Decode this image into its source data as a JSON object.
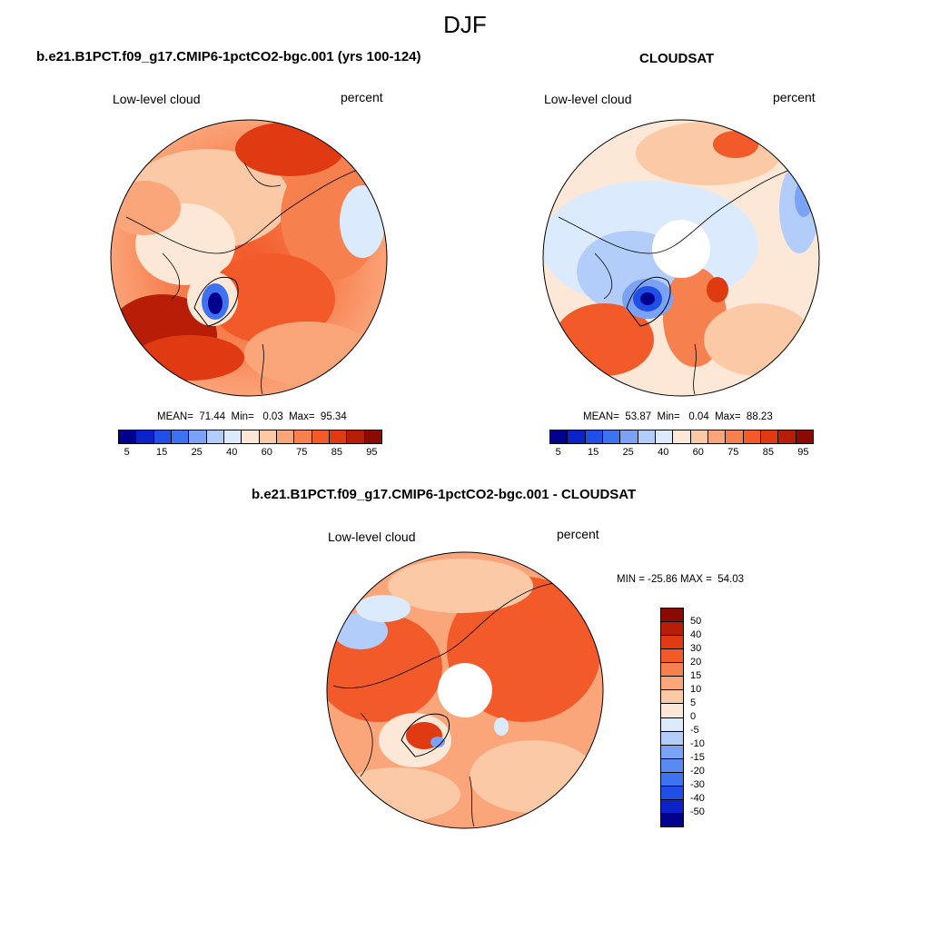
{
  "figure": {
    "title": "DJF"
  },
  "panels": {
    "model": {
      "title": "b.e21.B1PCT.f09_g17.CMIP6-1pctCO2-bgc.001 (yrs 100-124)",
      "variable": "Low-level cloud",
      "units": "percent",
      "stats": "MEAN=  71.44  Min=   0.03  Max=  95.34"
    },
    "obs": {
      "title": "CLOUDSAT",
      "variable": "Low-level cloud",
      "units": "percent",
      "stats": "MEAN=  53.87  Min=   0.04  Max=  88.23"
    },
    "diff": {
      "title": "b.e21.B1PCT.f09_g17.CMIP6-1pctCO2-bgc.001 - CLOUDSAT",
      "variable": "Low-level cloud",
      "units": "percent",
      "stats": "MIN = -25.86 MAX =  54.03"
    }
  },
  "colorbars": {
    "abs": {
      "colors": [
        "#00008f",
        "#0a22c8",
        "#1f4fe6",
        "#3d72f0",
        "#7aa3f6",
        "#b3cdfa",
        "#dceafd",
        "#fde7d6",
        "#fcc9a6",
        "#fba57a",
        "#f7804f",
        "#f35a2a",
        "#e03a12",
        "#b81e07",
        "#8a0b00"
      ],
      "tick_labels": [
        "5",
        "15",
        "25",
        "40",
        "60",
        "75",
        "85",
        "95"
      ]
    },
    "diff": {
      "colors": [
        "#8a0b00",
        "#b81e07",
        "#e03a12",
        "#f35a2a",
        "#f7804f",
        "#fba57a",
        "#fcc9a6",
        "#fde7d6",
        "#dceafd",
        "#b3cdfa",
        "#7aa3f6",
        "#5a8bf2",
        "#3d72f0",
        "#1f4fe6",
        "#0a22c8",
        "#00008f"
      ],
      "tick_labels": [
        "50",
        "40",
        "30",
        "20",
        "15",
        "10",
        "5",
        "0",
        "-5",
        "-10",
        "-15",
        "-20",
        "-30",
        "-40",
        "-50"
      ]
    }
  },
  "colors": {
    "land_outline": "#000000",
    "missing": "#ffffff"
  }
}
